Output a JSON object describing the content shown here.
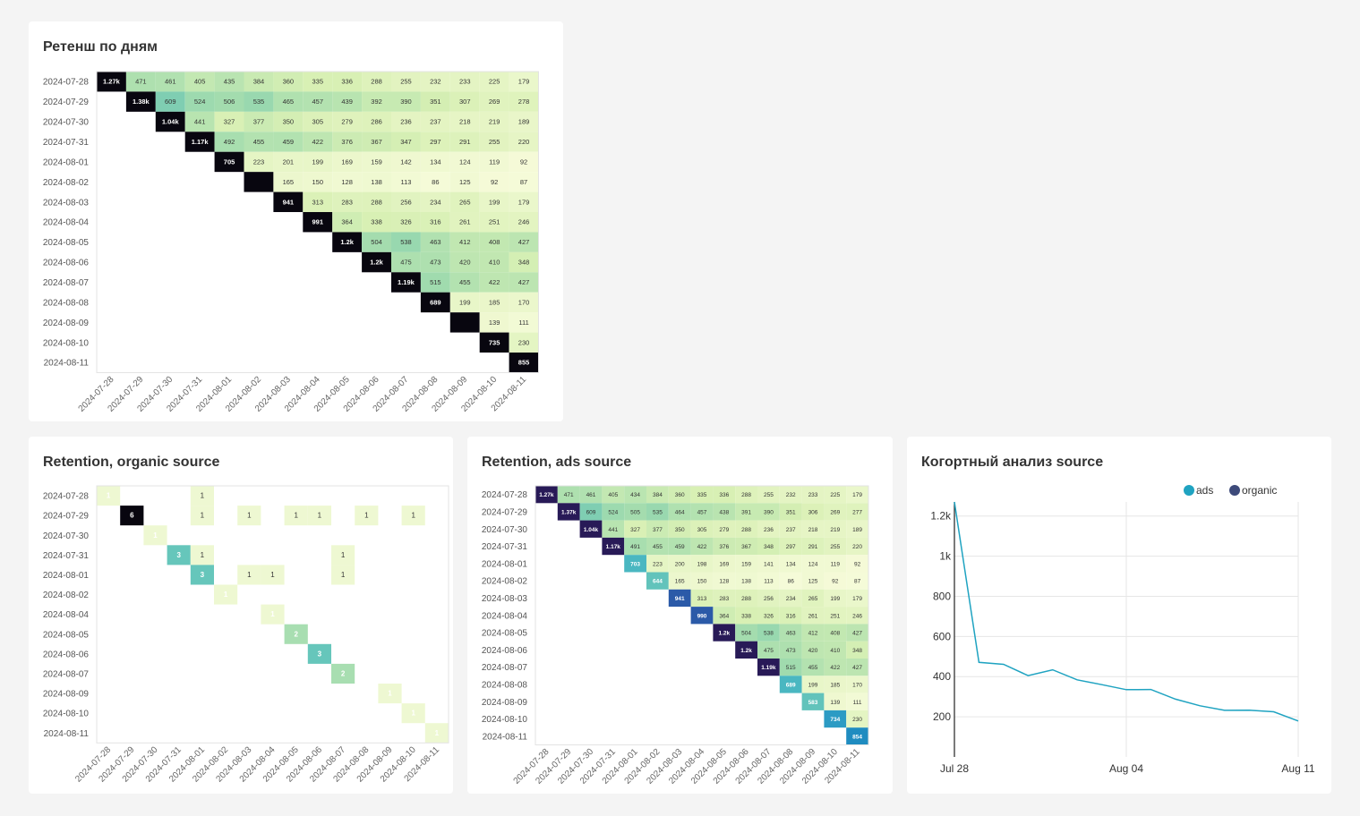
{
  "chart_data": [
    {
      "id": "ret-days",
      "type": "heatmap",
      "title": "Ретенш по дням",
      "labels": [
        "2024-07-28",
        "2024-07-29",
        "2024-07-30",
        "2024-07-31",
        "2024-08-01",
        "2024-08-02",
        "2024-08-03",
        "2024-08-04",
        "2024-08-05",
        "2024-08-06",
        "2024-08-07",
        "2024-08-08",
        "2024-08-09",
        "2024-08-10",
        "2024-08-11"
      ],
      "cells": [
        [
          "1.27k",
          "471",
          "461",
          "405",
          "435",
          "384",
          "360",
          "335",
          "336",
          "288",
          "255",
          "232",
          "233",
          "225",
          "179"
        ],
        [
          null,
          "1.38k",
          "609",
          "524",
          "506",
          "535",
          "465",
          "457",
          "439",
          "392",
          "390",
          "351",
          "307",
          "269",
          "278"
        ],
        [
          null,
          null,
          "1.04k",
          "441",
          "327",
          "377",
          "350",
          "305",
          "279",
          "286",
          "236",
          "237",
          "218",
          "219",
          "189"
        ],
        [
          null,
          null,
          null,
          "1.17k",
          "492",
          "455",
          "459",
          "422",
          "376",
          "367",
          "347",
          "297",
          "291",
          "255",
          "220"
        ],
        [
          null,
          null,
          null,
          null,
          "705",
          "223",
          "201",
          "199",
          "169",
          "159",
          "142",
          "134",
          "124",
          "119",
          "92"
        ],
        [
          null,
          null,
          null,
          null,
          null,
          "",
          "165",
          "150",
          "128",
          "138",
          "113",
          "86",
          "125",
          "92",
          "87"
        ],
        [
          null,
          null,
          null,
          null,
          null,
          null,
          "941",
          "313",
          "283",
          "288",
          "256",
          "234",
          "265",
          "199",
          "179"
        ],
        [
          null,
          null,
          null,
          null,
          null,
          null,
          null,
          "991",
          "364",
          "338",
          "326",
          "316",
          "261",
          "251",
          "246"
        ],
        [
          null,
          null,
          null,
          null,
          null,
          null,
          null,
          null,
          "1.2k",
          "504",
          "538",
          "463",
          "412",
          "408",
          "427"
        ],
        [
          null,
          null,
          null,
          null,
          null,
          null,
          null,
          null,
          null,
          "1.2k",
          "475",
          "473",
          "420",
          "410",
          "348"
        ],
        [
          null,
          null,
          null,
          null,
          null,
          null,
          null,
          null,
          null,
          null,
          "1.19k",
          "515",
          "455",
          "422",
          "427"
        ],
        [
          null,
          null,
          null,
          null,
          null,
          null,
          null,
          null,
          null,
          null,
          null,
          "689",
          "199",
          "185",
          "170"
        ],
        [
          null,
          null,
          null,
          null,
          null,
          null,
          null,
          null,
          null,
          null,
          null,
          null,
          "",
          "139",
          "111"
        ],
        [
          null,
          null,
          null,
          null,
          null,
          null,
          null,
          null,
          null,
          null,
          null,
          null,
          null,
          "735",
          "230"
        ],
        [
          null,
          null,
          null,
          null,
          null,
          null,
          null,
          null,
          null,
          null,
          null,
          null,
          null,
          null,
          "855"
        ]
      ]
    },
    {
      "id": "ret-organic",
      "type": "heatmap",
      "title": "Retention, organic source",
      "row_labels": [
        "2024-07-28",
        "2024-07-29",
        "2024-07-30",
        "2024-07-31",
        "2024-08-01",
        "2024-08-02",
        "2024-08-04",
        "2024-08-05",
        "2024-08-06",
        "2024-08-07",
        "2024-08-09",
        "2024-08-10",
        "2024-08-11"
      ],
      "col_labels": [
        "2024-07-28",
        "2024-07-29",
        "2024-07-30",
        "2024-07-31",
        "2024-08-01",
        "2024-08-02",
        "2024-08-03",
        "2024-08-04",
        "2024-08-05",
        "2024-08-06",
        "2024-08-07",
        "2024-08-08",
        "2024-08-09",
        "2024-08-10",
        "2024-08-11"
      ],
      "points": [
        {
          "row": "2024-07-28",
          "col": "2024-07-28",
          "value": 1
        },
        {
          "row": "2024-07-28",
          "col": "2024-08-01",
          "value": 1
        },
        {
          "row": "2024-07-29",
          "col": "2024-07-29",
          "value": 6
        },
        {
          "row": "2024-07-29",
          "col": "2024-08-01",
          "value": 1
        },
        {
          "row": "2024-07-29",
          "col": "2024-08-03",
          "value": 1
        },
        {
          "row": "2024-07-29",
          "col": "2024-08-05",
          "value": 1
        },
        {
          "row": "2024-07-29",
          "col": "2024-08-06",
          "value": 1
        },
        {
          "row": "2024-07-29",
          "col": "2024-08-08",
          "value": 1
        },
        {
          "row": "2024-07-29",
          "col": "2024-08-10",
          "value": 1
        },
        {
          "row": "2024-07-30",
          "col": "2024-07-30",
          "value": 1
        },
        {
          "row": "2024-07-31",
          "col": "2024-07-31",
          "value": 3
        },
        {
          "row": "2024-07-31",
          "col": "2024-08-01",
          "value": 1
        },
        {
          "row": "2024-07-31",
          "col": "2024-08-07",
          "value": 1
        },
        {
          "row": "2024-08-01",
          "col": "2024-08-01",
          "value": 3
        },
        {
          "row": "2024-08-01",
          "col": "2024-08-03",
          "value": 1
        },
        {
          "row": "2024-08-01",
          "col": "2024-08-04",
          "value": 1
        },
        {
          "row": "2024-08-01",
          "col": "2024-08-07",
          "value": 1
        },
        {
          "row": "2024-08-02",
          "col": "2024-08-02",
          "value": 1
        },
        {
          "row": "2024-08-04",
          "col": "2024-08-04",
          "value": 1
        },
        {
          "row": "2024-08-05",
          "col": "2024-08-05",
          "value": 2
        },
        {
          "row": "2024-08-06",
          "col": "2024-08-06",
          "value": 3
        },
        {
          "row": "2024-08-07",
          "col": "2024-08-07",
          "value": 2
        },
        {
          "row": "2024-08-09",
          "col": "2024-08-09",
          "value": 1
        },
        {
          "row": "2024-08-10",
          "col": "2024-08-10",
          "value": 1
        },
        {
          "row": "2024-08-11",
          "col": "2024-08-11",
          "value": 1
        }
      ]
    },
    {
      "id": "ret-ads",
      "type": "heatmap",
      "title": "Retention, ads source",
      "labels": [
        "2024-07-28",
        "2024-07-29",
        "2024-07-30",
        "2024-07-31",
        "2024-08-01",
        "2024-08-02",
        "2024-08-03",
        "2024-08-04",
        "2024-08-05",
        "2024-08-06",
        "2024-08-07",
        "2024-08-08",
        "2024-08-09",
        "2024-08-10",
        "2024-08-11"
      ],
      "cells": [
        [
          "1.27k",
          "471",
          "461",
          "405",
          "434",
          "384",
          "360",
          "335",
          "336",
          "288",
          "255",
          "232",
          "233",
          "225",
          "179"
        ],
        [
          null,
          "1.37k",
          "609",
          "524",
          "505",
          "535",
          "464",
          "457",
          "438",
          "391",
          "390",
          "351",
          "306",
          "269",
          "277"
        ],
        [
          null,
          null,
          "1.04k",
          "441",
          "327",
          "377",
          "350",
          "305",
          "279",
          "288",
          "236",
          "237",
          "218",
          "219",
          "189"
        ],
        [
          null,
          null,
          null,
          "1.17k",
          "491",
          "455",
          "459",
          "422",
          "376",
          "367",
          "348",
          "297",
          "291",
          "255",
          "220"
        ],
        [
          null,
          null,
          null,
          null,
          "703",
          "223",
          "200",
          "198",
          "169",
          "159",
          "141",
          "134",
          "124",
          "119",
          "92"
        ],
        [
          null,
          null,
          null,
          null,
          null,
          "644",
          "165",
          "150",
          "128",
          "138",
          "113",
          "86",
          "125",
          "92",
          "87"
        ],
        [
          null,
          null,
          null,
          null,
          null,
          null,
          "941",
          "313",
          "283",
          "288",
          "256",
          "234",
          "265",
          "199",
          "179"
        ],
        [
          null,
          null,
          null,
          null,
          null,
          null,
          null,
          "990",
          "364",
          "338",
          "326",
          "316",
          "261",
          "251",
          "246"
        ],
        [
          null,
          null,
          null,
          null,
          null,
          null,
          null,
          null,
          "1.2k",
          "504",
          "538",
          "463",
          "412",
          "408",
          "427"
        ],
        [
          null,
          null,
          null,
          null,
          null,
          null,
          null,
          null,
          null,
          "1.2k",
          "475",
          "473",
          "420",
          "410",
          "348"
        ],
        [
          null,
          null,
          null,
          null,
          null,
          null,
          null,
          null,
          null,
          null,
          "1.19k",
          "515",
          "455",
          "422",
          "427"
        ],
        [
          null,
          null,
          null,
          null,
          null,
          null,
          null,
          null,
          null,
          null,
          null,
          "689",
          "199",
          "185",
          "170"
        ],
        [
          null,
          null,
          null,
          null,
          null,
          null,
          null,
          null,
          null,
          null,
          null,
          null,
          "583",
          "139",
          "111"
        ],
        [
          null,
          null,
          null,
          null,
          null,
          null,
          null,
          null,
          null,
          null,
          null,
          null,
          null,
          "734",
          "230"
        ],
        [
          null,
          null,
          null,
          null,
          null,
          null,
          null,
          null,
          null,
          null,
          null,
          null,
          null,
          null,
          "854"
        ]
      ]
    },
    {
      "id": "cohort-line",
      "type": "line",
      "title": "Когортный анализ source",
      "legend": [
        {
          "name": "ads",
          "color": "#1fa3c1"
        },
        {
          "name": "organic",
          "color": "#3d4a7a"
        }
      ],
      "legend_position": "top-right",
      "x_ticks": [
        "Jul 28",
        "Aug 04",
        "Aug 11"
      ],
      "y_ticks": [
        "200",
        "400",
        "600",
        "800",
        "1k",
        "1.2k"
      ],
      "ylim": [
        0,
        1270
      ],
      "grid": true,
      "series": [
        {
          "name": "ads",
          "values": [
            1270,
            471,
            461,
            405,
            434,
            384,
            360,
            335,
            336,
            288,
            255,
            232,
            233,
            225,
            179
          ]
        }
      ]
    }
  ]
}
